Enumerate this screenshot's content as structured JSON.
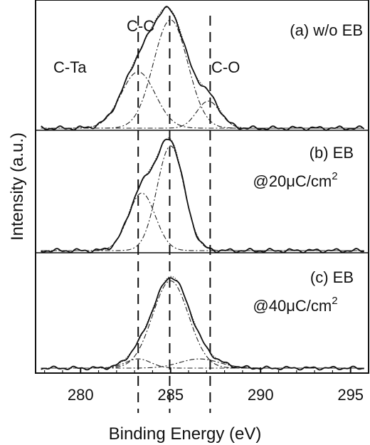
{
  "chart_data": {
    "type": "line",
    "xlabel": "Binding Energy (eV)",
    "ylabel": "Intensity (a.u.)",
    "xlim": [
      277.5,
      296
    ],
    "x_ticks": [
      280,
      285,
      290,
      295
    ],
    "reference_lines": [
      {
        "name": "C-Ta",
        "x": 283.2
      },
      {
        "name": "C-C",
        "x": 284.95
      },
      {
        "name": "C-O",
        "x": 287.2
      }
    ],
    "peak_labels": [
      "C-Ta",
      "C-C",
      "C-O"
    ],
    "panels": [
      {
        "id": "a",
        "label": "(a) w/o EB",
        "label_line2": "",
        "ylim": [
          0,
          1
        ],
        "components": [
          {
            "center": 283.2,
            "height": 0.52,
            "width": 0.95
          },
          {
            "center": 285.0,
            "height": 1.0,
            "width": 0.95
          },
          {
            "center": 287.1,
            "height": 0.25,
            "width": 0.65
          }
        ]
      },
      {
        "id": "b",
        "label": "(b) EB",
        "label_line2": "@20μC/cm",
        "label_sup": "2",
        "ylim": [
          0,
          1
        ],
        "components": [
          {
            "center": 283.4,
            "height": 0.55,
            "width": 0.75
          },
          {
            "center": 285.0,
            "height": 1.0,
            "width": 0.75
          }
        ]
      },
      {
        "id": "c",
        "label": "(c) EB",
        "label_line2": "@40μC/cm",
        "label_sup": "2",
        "ylim": [
          0,
          1
        ],
        "components": [
          {
            "center": 283.2,
            "height": 0.1,
            "width": 0.7
          },
          {
            "center": 285.0,
            "height": 0.95,
            "width": 1.0
          },
          {
            "center": 286.6,
            "height": 0.1,
            "width": 1.1
          }
        ]
      }
    ]
  }
}
